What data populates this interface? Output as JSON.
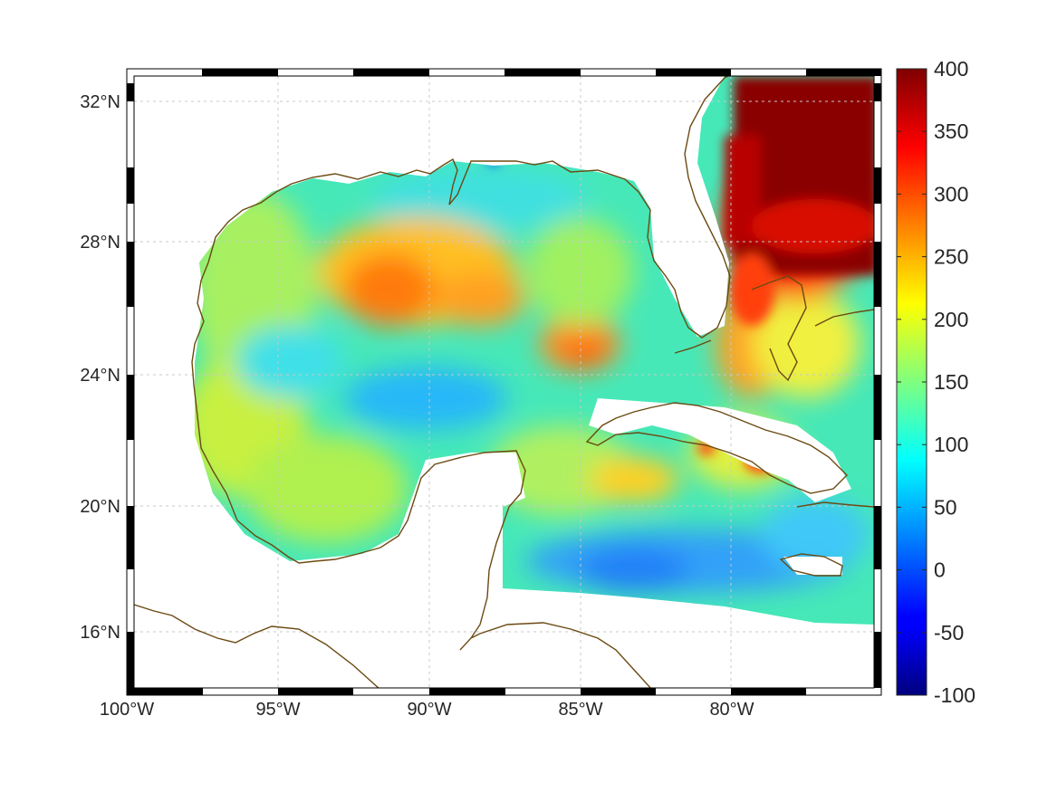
{
  "map": {
    "lon_range": [
      -100,
      -75
    ],
    "lat_range": [
      14.5,
      33
    ],
    "projection": "mercator",
    "grid": true,
    "x_ticks": [
      "100°W",
      "95°W",
      "90°W",
      "85°W",
      "80°W"
    ],
    "y_ticks": [
      "32°N",
      "28°N",
      "24°N",
      "20°N",
      "16°N"
    ],
    "colorbar": {
      "min": -100,
      "max": 400,
      "colormap": "jet",
      "ticks": [
        "400",
        "350",
        "300",
        "250",
        "200",
        "150",
        "100",
        "50",
        "0",
        "-50",
        "-100"
      ]
    },
    "colors": {
      "coastline": "#6b4a12",
      "grid": "#c8c8c8",
      "frame_dark": "#000000",
      "frame_light": "#ffffff"
    }
  }
}
